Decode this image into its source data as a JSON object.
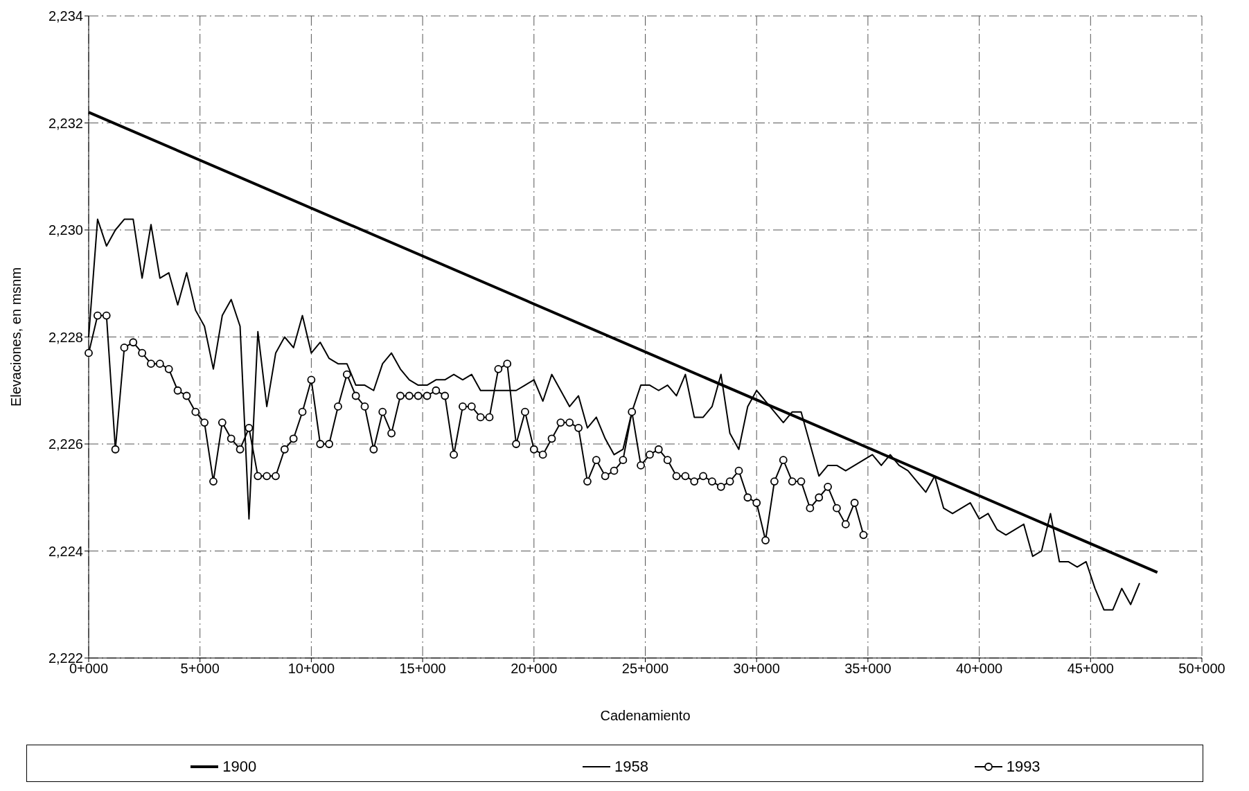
{
  "chart_data": {
    "type": "line",
    "xlabel": "Cadenamiento",
    "ylabel": "Elevaciones, en msnm",
    "categories": [
      "0+000",
      null,
      null,
      null,
      null,
      null,
      null,
      null,
      null,
      null,
      null,
      null,
      null,
      null,
      null,
      null,
      null,
      null,
      null,
      null,
      null,
      null,
      null,
      null,
      null,
      "5+000",
      null,
      null,
      null,
      null,
      null,
      null,
      null,
      null,
      null,
      null,
      null,
      null,
      null,
      null,
      null,
      null,
      null,
      null,
      null,
      null,
      null,
      null,
      null,
      null,
      "10+000",
      null,
      null,
      null,
      null,
      null,
      null,
      null,
      null,
      null,
      null,
      null,
      null,
      null,
      null,
      null,
      null,
      null,
      null,
      null,
      null,
      null,
      null,
      null,
      null,
      "15+000",
      null,
      null,
      null,
      null,
      null,
      null,
      null,
      null,
      null,
      null,
      null,
      null,
      null,
      null,
      null,
      null,
      null,
      null,
      null,
      null,
      null,
      null,
      null,
      null,
      "20+000",
      null,
      null,
      null,
      null,
      null,
      null,
      null,
      null,
      null,
      null,
      null,
      null,
      null,
      null,
      null,
      null,
      null,
      null,
      null,
      null,
      null,
      null,
      null,
      null,
      "25+000",
      null,
      null,
      null,
      null,
      null,
      null,
      null,
      null,
      null,
      null,
      null,
      null,
      null,
      null,
      null,
      null,
      null,
      null,
      null,
      null,
      null,
      null,
      null,
      null,
      "30+000",
      null,
      null,
      null,
      null,
      null,
      null,
      null,
      null,
      null,
      null,
      null,
      null,
      null,
      null,
      null,
      null,
      null,
      null,
      null,
      null,
      null,
      null,
      null,
      null,
      "35+000",
      null,
      null,
      null,
      null,
      null,
      null,
      null,
      null,
      null,
      null,
      null,
      null,
      null,
      null,
      null,
      null,
      null,
      null,
      null,
      null,
      null,
      null,
      null,
      null,
      "40+000",
      null,
      null,
      null,
      null,
      null,
      null,
      null,
      null,
      null,
      null,
      null,
      null,
      null,
      null,
      null,
      null,
      null,
      null,
      null,
      null,
      null,
      null,
      null,
      null,
      "45+000",
      null,
      null,
      null,
      null,
      null,
      null,
      null,
      null,
      null,
      null,
      null,
      null,
      null,
      null,
      null,
      null,
      null,
      null,
      null,
      null,
      null,
      null,
      null,
      null,
      "50+000"
    ],
    "ylim": [
      2222,
      2234
    ],
    "yticks": [
      {
        "value": 2222,
        "label": "2,222"
      },
      {
        "value": 2224,
        "label": "2,224"
      },
      {
        "value": 2226,
        "label": "2,226"
      },
      {
        "value": 2228,
        "label": "2,228"
      },
      {
        "value": 2230,
        "label": "2,230"
      },
      {
        "value": 2232,
        "label": "2,232"
      },
      {
        "value": 2234,
        "label": "2,234"
      }
    ],
    "grid": true,
    "legend": "bottom",
    "line_style": "solid",
    "series": [
      {
        "name": "1900",
        "color": "#000000",
        "marker": "none",
        "values": [
          2232.2,
          null,
          null,
          null,
          null,
          null,
          null,
          null,
          null,
          null,
          null,
          null,
          null,
          null,
          null,
          null,
          null,
          null,
          null,
          null,
          null,
          null,
          null,
          null,
          null,
          null,
          null,
          null,
          null,
          null,
          null,
          null,
          null,
          null,
          null,
          null,
          null,
          null,
          null,
          null,
          null,
          null,
          null,
          null,
          null,
          null,
          null,
          null,
          null,
          null,
          null,
          null,
          null,
          null,
          null,
          null,
          null,
          null,
          null,
          null,
          null,
          null,
          null,
          null,
          null,
          null,
          null,
          null,
          null,
          null,
          null,
          null,
          null,
          null,
          null,
          null,
          null,
          null,
          null,
          null,
          null,
          null,
          null,
          null,
          null,
          null,
          null,
          null,
          null,
          null,
          null,
          null,
          null,
          null,
          null,
          null,
          null,
          null,
          null,
          null,
          null,
          null,
          null,
          null,
          null,
          null,
          null,
          null,
          null,
          null,
          null,
          null,
          null,
          null,
          null,
          null,
          null,
          null,
          null,
          null,
          null,
          null,
          null,
          null,
          null,
          null,
          null,
          null,
          null,
          null,
          null,
          null,
          null,
          null,
          null,
          null,
          null,
          null,
          null,
          null,
          null,
          null,
          null,
          null,
          null,
          null,
          null,
          null,
          null,
          null,
          null,
          null,
          null,
          null,
          null,
          null,
          null,
          null,
          null,
          null,
          null,
          null,
          null,
          null,
          null,
          null,
          null,
          null,
          null,
          null,
          null,
          null,
          null,
          null,
          null,
          null,
          null,
          null,
          null,
          null,
          null,
          null,
          null,
          null,
          null,
          null,
          null,
          null,
          null,
          null,
          null,
          null,
          null,
          null,
          null,
          null,
          null,
          null,
          null,
          null,
          null,
          null,
          null,
          null,
          null,
          null,
          null,
          null,
          null,
          null,
          null,
          null,
          null,
          null,
          null,
          null,
          null,
          null,
          null,
          null,
          null,
          null,
          null,
          null,
          null,
          null,
          null,
          null,
          null,
          null,
          null,
          null,
          null,
          null,
          null,
          null,
          null,
          null,
          null,
          null,
          2223.6,
          null,
          null,
          null,
          null,
          null,
          null,
          null,
          null,
          null,
          null
        ]
      },
      {
        "name": "1958",
        "color": "#000000",
        "marker": "none",
        "values": [
          2228.0,
          null,
          2230.2,
          null,
          2229.7,
          null,
          2230.0,
          null,
          2230.2,
          null,
          2230.2,
          null,
          2229.1,
          null,
          2230.1,
          null,
          2229.1,
          null,
          2229.2,
          null,
          2228.6,
          null,
          2229.2,
          null,
          2228.5,
          null,
          2228.2,
          null,
          2227.4,
          null,
          2228.4,
          null,
          2228.7,
          null,
          2228.2,
          null,
          2224.6,
          null,
          2228.1,
          null,
          2226.7,
          null,
          2227.7,
          null,
          2228.0,
          null,
          2227.8,
          null,
          2228.4,
          null,
          2227.7,
          null,
          2227.9,
          null,
          2227.6,
          null,
          2227.5,
          null,
          2227.5,
          null,
          2227.1,
          null,
          2227.1,
          null,
          2227.0,
          null,
          2227.5,
          null,
          2227.7,
          null,
          2227.4,
          null,
          2227.2,
          null,
          2227.1,
          null,
          2227.1,
          null,
          2227.2,
          null,
          2227.2,
          null,
          2227.3,
          null,
          2227.2,
          null,
          2227.3,
          null,
          2227.0,
          null,
          2227.0,
          null,
          2227.0,
          null,
          2227.0,
          null,
          2227.0,
          null,
          2227.1,
          null,
          2227.2,
          null,
          2226.8,
          null,
          2227.3,
          null,
          2227.0,
          null,
          2226.7,
          null,
          2226.9,
          null,
          2226.3,
          null,
          2226.5,
          null,
          2226.1,
          null,
          2225.8,
          null,
          2225.9,
          null,
          2226.6,
          null,
          2227.1,
          null,
          2227.1,
          null,
          2227.0,
          null,
          2227.1,
          null,
          2226.9,
          null,
          2227.3,
          null,
          2226.5,
          null,
          2226.5,
          null,
          2226.7,
          null,
          2227.3,
          null,
          2226.2,
          null,
          2225.9,
          null,
          2226.7,
          null,
          2227.0,
          null,
          2226.8,
          null,
          2226.6,
          null,
          2226.4,
          null,
          2226.6,
          null,
          2226.6,
          null,
          2226.0,
          null,
          2225.4,
          null,
          2225.6,
          null,
          2225.6,
          null,
          2225.5,
          null,
          2225.6,
          null,
          2225.7,
          null,
          2225.8,
          null,
          2225.6,
          null,
          2225.8,
          null,
          2225.6,
          null,
          2225.5,
          null,
          2225.3,
          null,
          2225.1,
          null,
          2225.4,
          null,
          2224.8,
          null,
          2224.7,
          null,
          2224.8,
          null,
          2224.9,
          null,
          2224.6,
          null,
          2224.7,
          null,
          2224.4,
          null,
          2224.3,
          null,
          2224.4,
          null,
          2224.5,
          null,
          2223.9,
          null,
          2224.0,
          null,
          2224.7,
          null,
          2223.8,
          null,
          2223.8,
          null,
          2223.7,
          null,
          2223.8,
          null,
          2223.3,
          null,
          2222.9,
          null,
          2222.9,
          null,
          2223.3,
          null,
          2223.0,
          null,
          2223.4,
          null,
          null,
          null,
          null,
          null,
          null,
          null,
          null,
          null,
          null,
          null,
          null,
          null,
          null
        ]
      },
      {
        "name": "1993",
        "color": "#000000",
        "marker": "circle",
        "values": [
          2227.7,
          null,
          2228.4,
          null,
          2228.4,
          null,
          2225.9,
          null,
          2227.8,
          null,
          2227.9,
          null,
          2227.7,
          null,
          2227.5,
          null,
          2227.5,
          null,
          2227.4,
          null,
          2227.0,
          null,
          2226.9,
          null,
          2226.6,
          null,
          2226.4,
          null,
          2225.3,
          null,
          2226.4,
          null,
          2226.1,
          null,
          2225.9,
          null,
          2226.3,
          null,
          2225.4,
          null,
          2225.4,
          null,
          2225.4,
          null,
          2225.9,
          null,
          2226.1,
          null,
          2226.6,
          null,
          2227.2,
          null,
          2226.0,
          null,
          2226.0,
          null,
          2226.7,
          null,
          2227.3,
          null,
          2226.9,
          null,
          2226.7,
          null,
          2225.9,
          null,
          2226.6,
          null,
          2226.2,
          null,
          2226.9,
          null,
          2226.9,
          null,
          2226.9,
          null,
          2226.9,
          null,
          2227.0,
          null,
          2226.9,
          null,
          2225.8,
          null,
          2226.7,
          null,
          2226.7,
          null,
          2226.5,
          null,
          2226.5,
          null,
          2227.4,
          null,
          2227.5,
          null,
          2226.0,
          null,
          2226.6,
          null,
          2225.9,
          null,
          2225.8,
          null,
          2226.1,
          null,
          2226.4,
          null,
          2226.4,
          null,
          2226.3,
          null,
          2225.3,
          null,
          2225.7,
          null,
          2225.4,
          null,
          2225.5,
          null,
          2225.7,
          null,
          2226.6,
          null,
          2225.6,
          null,
          2225.8,
          null,
          2225.9,
          null,
          2225.7,
          null,
          2225.4,
          null,
          2225.4,
          null,
          2225.3,
          null,
          2225.4,
          null,
          2225.3,
          null,
          2225.2,
          null,
          2225.3,
          null,
          2225.5,
          null,
          2225.0,
          null,
          2224.9,
          null,
          2224.2,
          null,
          2225.3,
          null,
          2225.7,
          null,
          2225.3,
          null,
          2225.3,
          null,
          2224.8,
          null,
          2225.0,
          null,
          2225.2,
          null,
          2224.8,
          null,
          2224.5,
          null,
          2224.9,
          null,
          2224.3,
          null,
          null,
          null,
          null,
          null,
          null,
          null,
          null,
          null,
          null,
          null,
          null,
          null,
          null,
          null,
          null,
          null,
          null,
          null,
          null,
          null,
          null,
          null,
          null,
          null,
          null,
          null,
          null,
          null,
          null,
          null,
          null,
          null,
          null,
          null,
          null,
          null,
          null,
          null,
          null,
          null,
          null,
          null,
          null,
          null,
          null,
          null,
          null,
          null,
          null,
          null,
          null,
          null,
          null,
          null,
          null,
          null,
          null,
          null,
          null,
          null,
          null,
          null,
          null,
          null,
          null,
          null,
          null,
          null,
          null,
          null,
          null,
          null,
          null,
          null,
          null
        ]
      }
    ]
  }
}
